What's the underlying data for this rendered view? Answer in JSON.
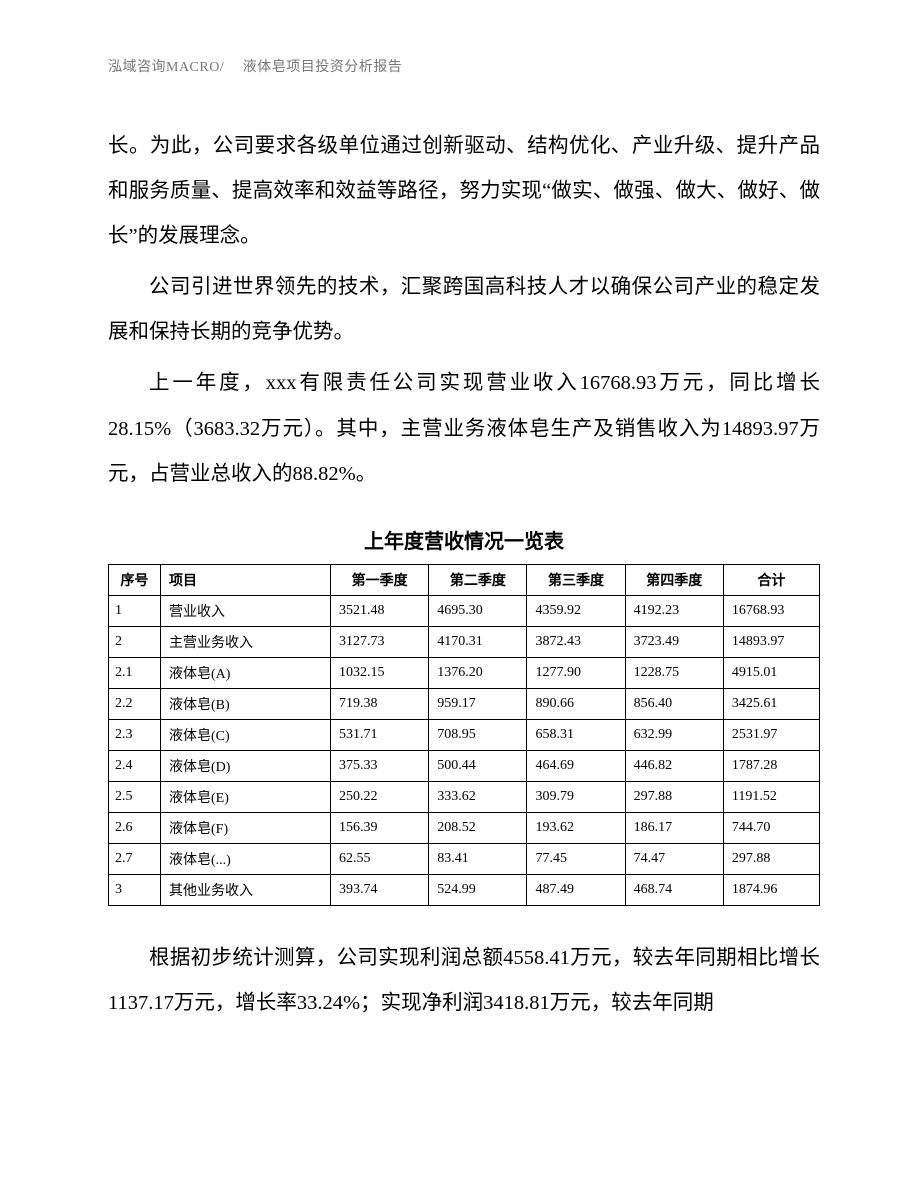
{
  "header": "泓域咨询MACRO/　 液体皂项目投资分析报告",
  "para1": "长。为此，公司要求各级单位通过创新驱动、结构优化、产业升级、提升产品和服务质量、提高效率和效益等路径，努力实现“做实、做强、做大、做好、做长”的发展理念。",
  "para2": "公司引进世界领先的技术，汇聚跨国高科技人才以确保公司产业的稳定发展和保持长期的竞争优势。",
  "para3": "上一年度，xxx有限责任公司实现营业收入16768.93万元，同比增长28.15%（3683.32万元）。其中，主营业务液体皂生产及销售收入为14893.97万元，占营业总收入的88.82%。",
  "table": {
    "title": "上年度营收情况一览表",
    "columns": [
      "序号",
      "项目",
      "第一季度",
      "第二季度",
      "第三季度",
      "第四季度",
      "合计"
    ],
    "rows": [
      [
        "1",
        "营业收入",
        "3521.48",
        "4695.30",
        "4359.92",
        "4192.23",
        "16768.93"
      ],
      [
        "2",
        "主营业务收入",
        "3127.73",
        "4170.31",
        "3872.43",
        "3723.49",
        "14893.97"
      ],
      [
        "2.1",
        "液体皂(A)",
        "1032.15",
        "1376.20",
        "1277.90",
        "1228.75",
        "4915.01"
      ],
      [
        "2.2",
        "液体皂(B)",
        "719.38",
        "959.17",
        "890.66",
        "856.40",
        "3425.61"
      ],
      [
        "2.3",
        "液体皂(C)",
        "531.71",
        "708.95",
        "658.31",
        "632.99",
        "2531.97"
      ],
      [
        "2.4",
        "液体皂(D)",
        "375.33",
        "500.44",
        "464.69",
        "446.82",
        "1787.28"
      ],
      [
        "2.5",
        "液体皂(E)",
        "250.22",
        "333.62",
        "309.79",
        "297.88",
        "1191.52"
      ],
      [
        "2.6",
        "液体皂(F)",
        "156.39",
        "208.52",
        "193.62",
        "186.17",
        "744.70"
      ],
      [
        "2.7",
        "液体皂(...)",
        "62.55",
        "83.41",
        "77.45",
        "74.47",
        "297.88"
      ],
      [
        "3",
        "其他业务收入",
        "393.74",
        "524.99",
        "487.49",
        "468.74",
        "1874.96"
      ]
    ]
  },
  "para4": "根据初步统计测算，公司实现利润总额4558.41万元，较去年同期相比增长1137.17万元，增长率33.24%；实现净利润3418.81万元，较去年同期"
}
